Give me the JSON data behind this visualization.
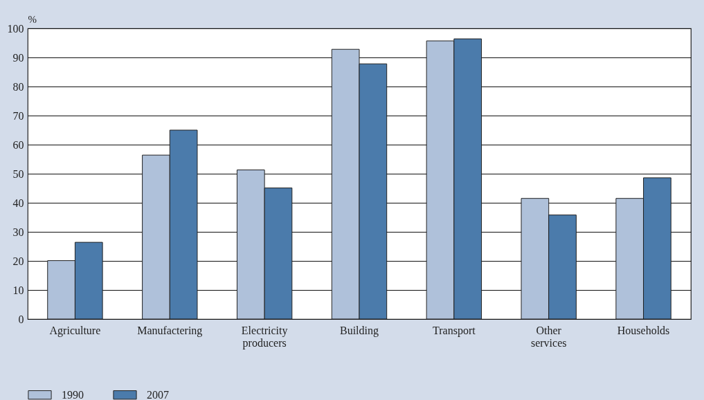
{
  "chart_data": {
    "type": "bar",
    "ylabel": "%",
    "categories": [
      "Agriculture",
      "Manufactering",
      "Electricity producers",
      "Building",
      "Transport",
      "Other services",
      "Households"
    ],
    "series": [
      {
        "name": "1990",
        "color": "#afc1da",
        "values": [
          20.1,
          56.4,
          51.3,
          92.8,
          95.7,
          41.5,
          41.5
        ]
      },
      {
        "name": "2007",
        "color": "#4b7bab",
        "values": [
          26.4,
          65.0,
          45.1,
          87.8,
          96.4,
          35.8,
          48.6
        ]
      }
    ],
    "ylim": [
      0,
      100
    ],
    "yticks": [
      0,
      10,
      20,
      30,
      40,
      50,
      60,
      70,
      80,
      90,
      100
    ],
    "grid": "y",
    "legend": "bottom left"
  }
}
